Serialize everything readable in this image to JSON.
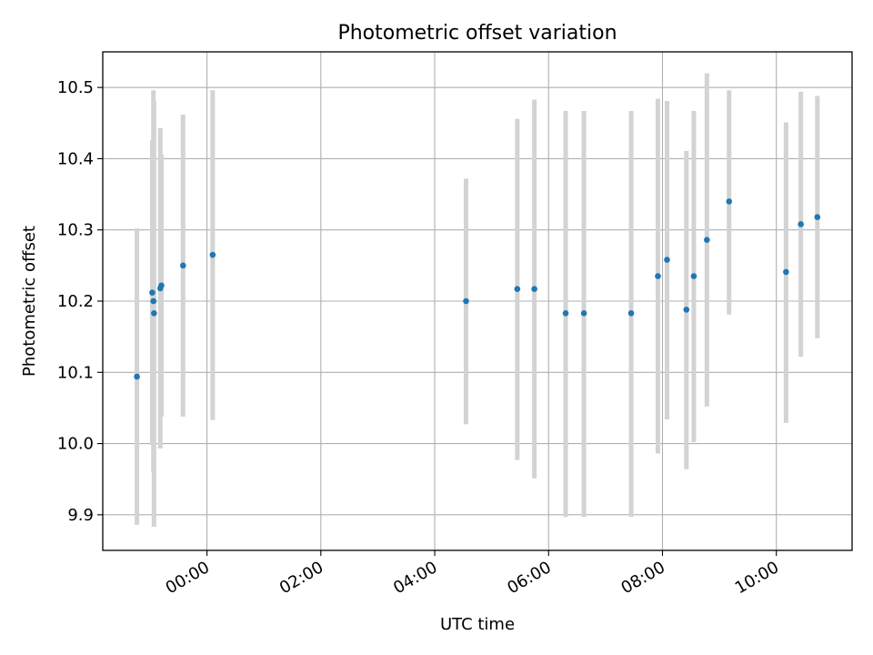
{
  "chart_data": {
    "type": "scatter",
    "title": "Photometric offset variation",
    "xlabel": "UTC time",
    "ylabel": "Photometric offset",
    "x_ticks": [
      "00:00",
      "02:00",
      "04:00",
      "06:00",
      "08:00",
      "10:00"
    ],
    "x_tick_hours": [
      0,
      2,
      4,
      6,
      8,
      10
    ],
    "y_ticks": [
      9.9,
      10.0,
      10.1,
      10.2,
      10.3,
      10.4,
      10.5
    ],
    "xlim_hours": [
      -1.83,
      11.33
    ],
    "ylim": [
      9.85,
      10.55
    ],
    "grid": true,
    "colors": {
      "points": "#1f77b4",
      "error_bars": "#d3d3d3",
      "grid": "#b0b0b0"
    },
    "x_unit": "hours UTC",
    "points": [
      {
        "t": -1.23,
        "y": 10.094,
        "low": 9.886,
        "high": 10.302
      },
      {
        "t": -0.96,
        "y": 10.212,
        "low": 9.998,
        "high": 10.426
      },
      {
        "t": -0.94,
        "y": 10.2,
        "low": 9.96,
        "high": 10.496
      },
      {
        "t": -0.93,
        "y": 10.183,
        "low": 9.883,
        "high": 10.481
      },
      {
        "t": -0.82,
        "y": 10.218,
        "low": 9.993,
        "high": 10.443
      },
      {
        "t": -0.8,
        "y": 10.222,
        "low": 10.038,
        "high": 10.406
      },
      {
        "t": -0.42,
        "y": 10.25,
        "low": 10.038,
        "high": 10.462
      },
      {
        "t": 0.1,
        "y": 10.265,
        "low": 10.033,
        "high": 10.496
      },
      {
        "t": 4.55,
        "y": 10.2,
        "low": 10.027,
        "high": 10.372
      },
      {
        "t": 5.45,
        "y": 10.217,
        "low": 9.977,
        "high": 10.456
      },
      {
        "t": 5.75,
        "y": 10.217,
        "low": 9.951,
        "high": 10.483
      },
      {
        "t": 6.3,
        "y": 10.183,
        "low": 9.897,
        "high": 10.467
      },
      {
        "t": 6.62,
        "y": 10.183,
        "low": 9.897,
        "high": 10.467
      },
      {
        "t": 7.45,
        "y": 10.183,
        "low": 9.897,
        "high": 10.467
      },
      {
        "t": 7.92,
        "y": 10.235,
        "low": 9.986,
        "high": 10.484
      },
      {
        "t": 8.08,
        "y": 10.258,
        "low": 10.034,
        "high": 10.481
      },
      {
        "t": 8.42,
        "y": 10.188,
        "low": 9.964,
        "high": 10.411
      },
      {
        "t": 8.55,
        "y": 10.235,
        "low": 10.002,
        "high": 10.467
      },
      {
        "t": 8.78,
        "y": 10.286,
        "low": 10.052,
        "high": 10.52
      },
      {
        "t": 9.17,
        "y": 10.34,
        "low": 10.181,
        "high": 10.496
      },
      {
        "t": 10.17,
        "y": 10.241,
        "low": 10.029,
        "high": 10.451
      },
      {
        "t": 10.43,
        "y": 10.308,
        "low": 10.122,
        "high": 10.494
      },
      {
        "t": 10.72,
        "y": 10.318,
        "low": 10.148,
        "high": 10.488
      }
    ]
  }
}
